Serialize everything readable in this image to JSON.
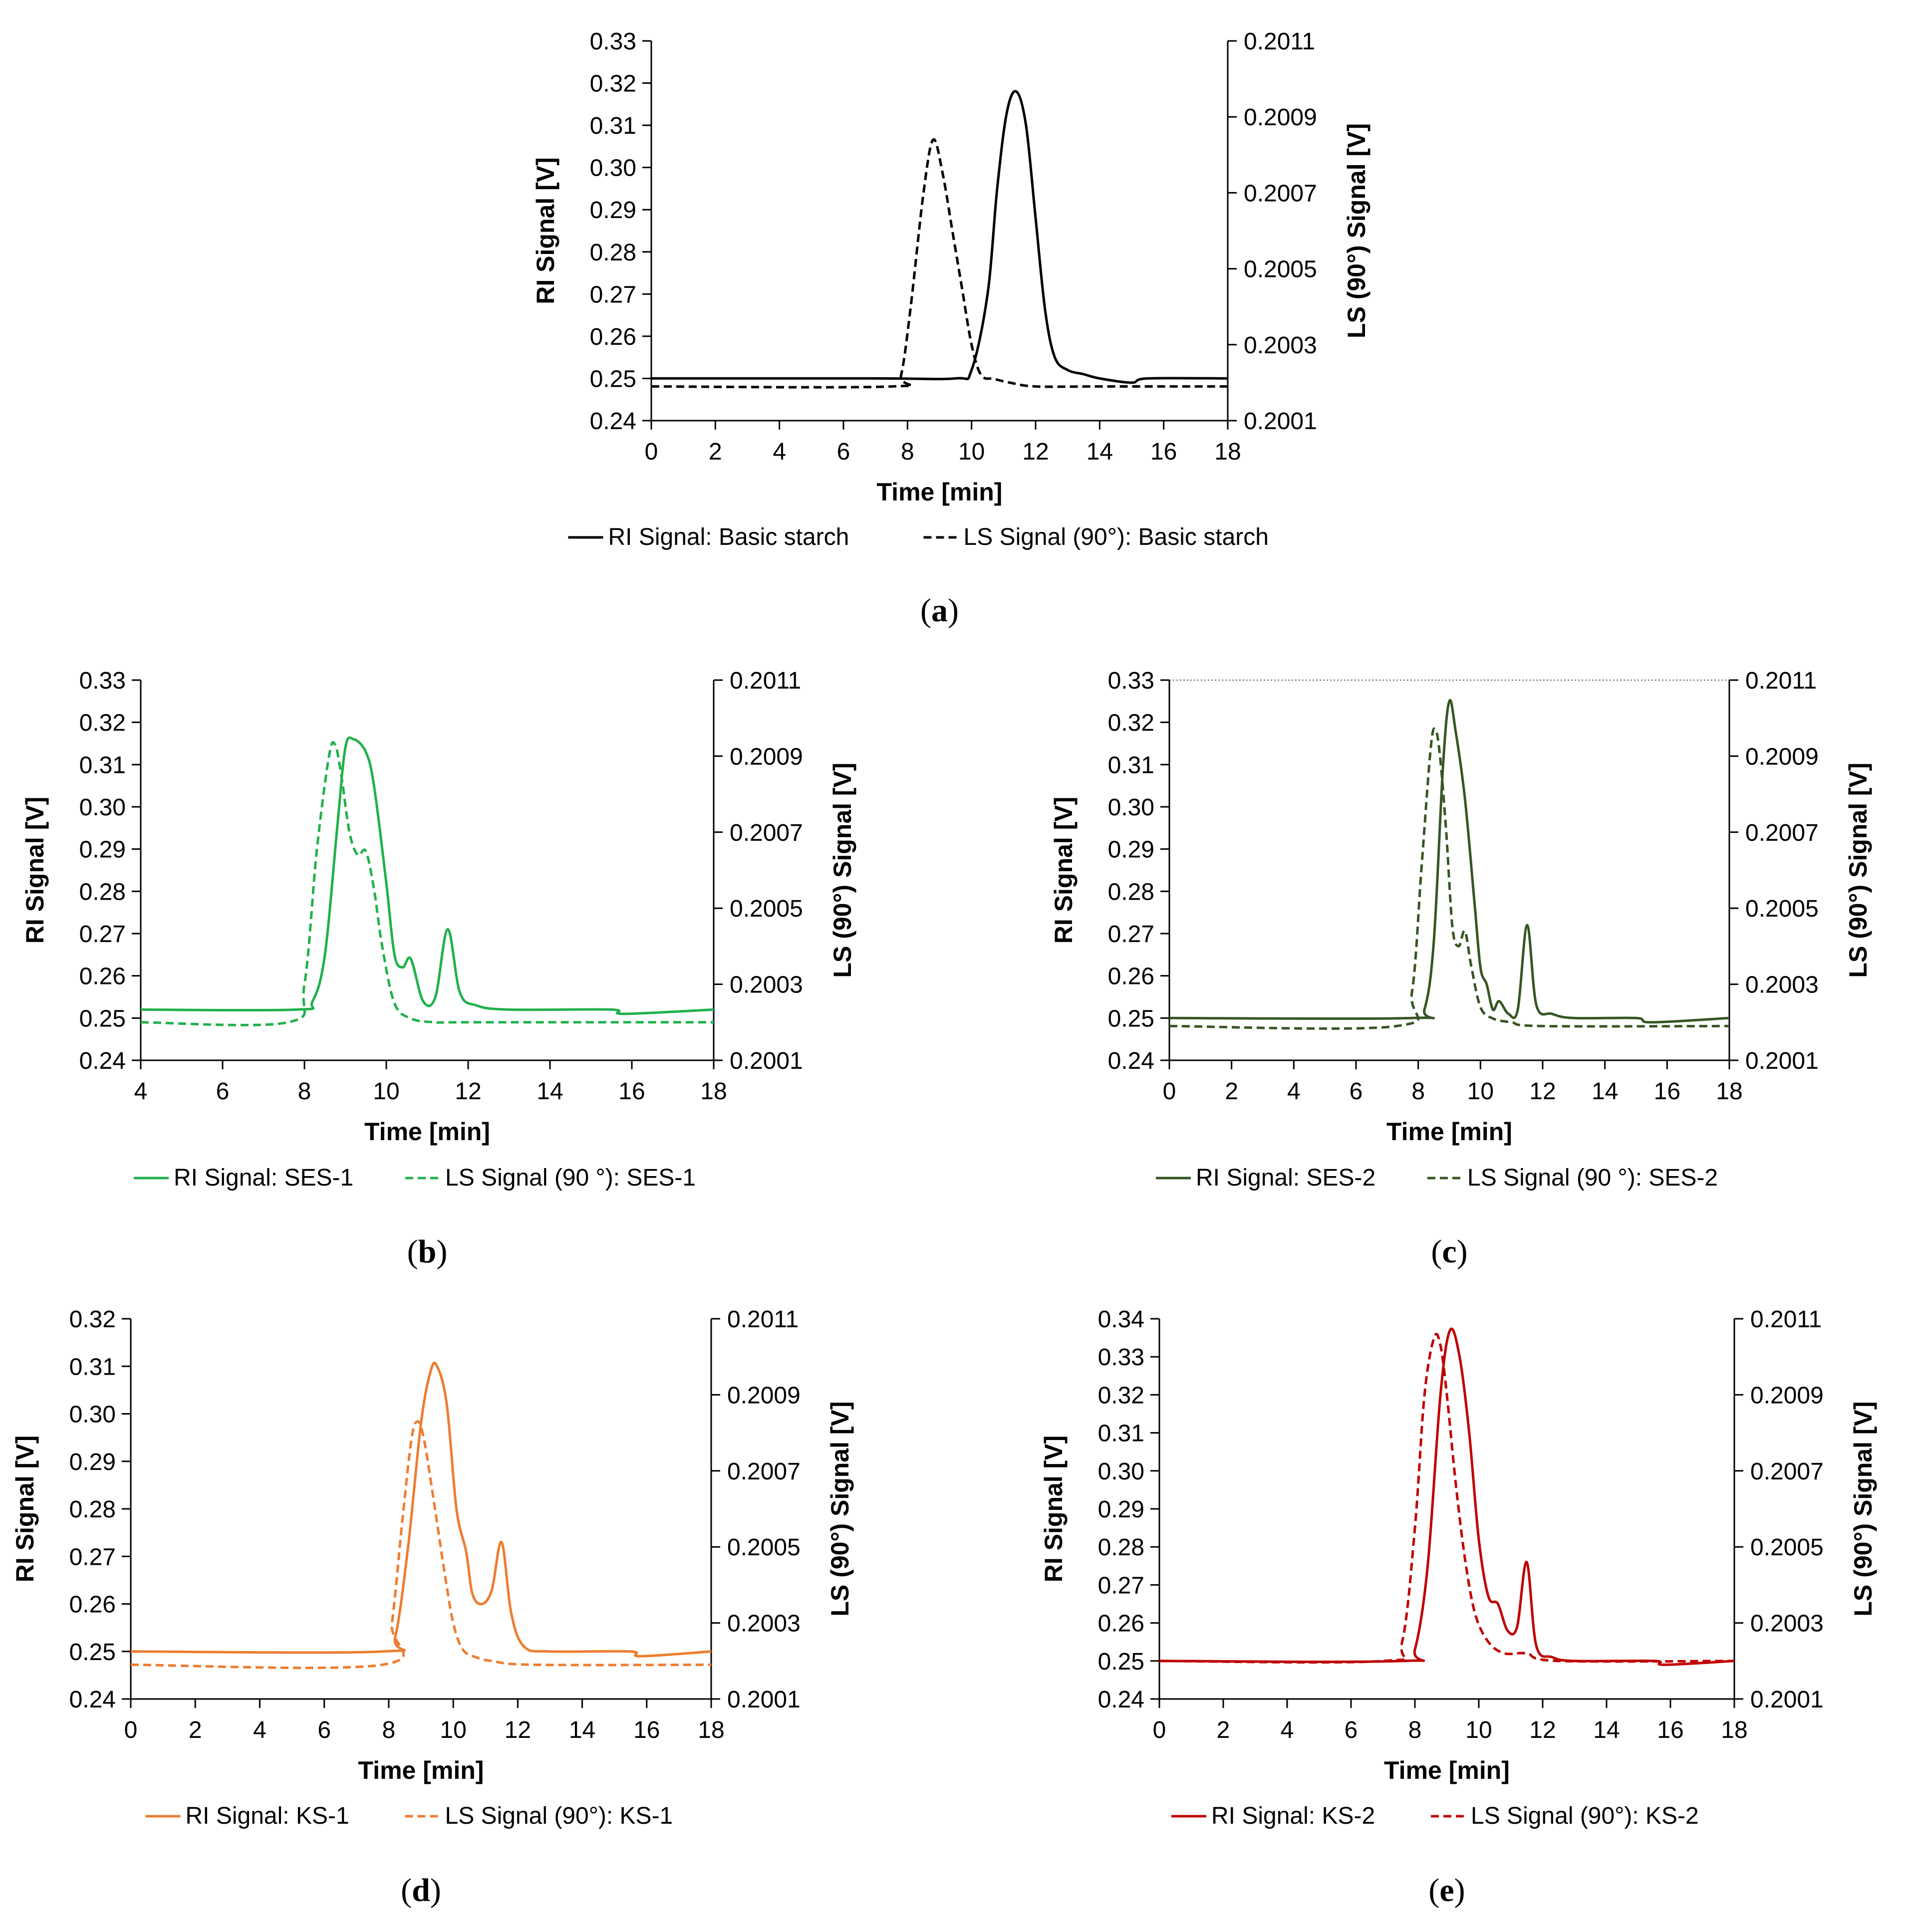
{
  "chart_data": [
    {
      "type": "line",
      "panel": "a",
      "caption": "a",
      "xlabel": "Time [min]",
      "ylabel": "RI Signal [V]",
      "y2label": "LS (90°) Signal [V]",
      "xlim": [
        0,
        18
      ],
      "ylim": [
        0.24,
        0.33
      ],
      "y2lim": [
        0.2001,
        0.2011
      ],
      "xticks": [
        "0",
        "2",
        "4",
        "6",
        "8",
        "10",
        "12",
        "14",
        "16",
        "18"
      ],
      "yticks": [
        "0.24",
        "0.25",
        "0.26",
        "0.27",
        "0.28",
        "0.29",
        "0.30",
        "0.31",
        "0.32",
        "0.33"
      ],
      "y2ticks": [
        "0.2001",
        "0.2003",
        "0.2005",
        "0.2007",
        "0.2009",
        "0.2011"
      ],
      "top_gridline": false,
      "series": [
        {
          "name": "RI Signal: Basic starch",
          "axis": "left",
          "style": "solid",
          "color": "#000000",
          "x": [
            0,
            7,
            9.5,
            10,
            10.5,
            10.8,
            11.1,
            11.4,
            11.7,
            12,
            12.3,
            12.6,
            13,
            13.5,
            14,
            15,
            15.5,
            18
          ],
          "y": [
            0.25,
            0.25,
            0.25,
            0.252,
            0.27,
            0.295,
            0.313,
            0.318,
            0.31,
            0.288,
            0.266,
            0.255,
            0.252,
            0.251,
            0.25,
            0.249,
            0.25,
            0.25
          ]
        },
        {
          "name": "LS Signal (90°): Basic starch",
          "axis": "right",
          "style": "dashed",
          "color": "#000000",
          "x": [
            0,
            7.5,
            7.8,
            8.1,
            8.5,
            8.8,
            9.1,
            9.4,
            9.7,
            10,
            10.3,
            10.7,
            11.2,
            12,
            14,
            18
          ],
          "y": [
            0.20019,
            0.20019,
            0.20022,
            0.2004,
            0.2007,
            0.20084,
            0.20075,
            0.2006,
            0.20045,
            0.2003,
            0.20022,
            0.20021,
            0.2002,
            0.20019,
            0.20019,
            0.20019
          ]
        }
      ]
    },
    {
      "type": "line",
      "panel": "b",
      "caption": "b",
      "xlabel": "Time [min]",
      "ylabel": "RI Signal [V]",
      "y2label": "LS (90°) Signal [V]",
      "xlim": [
        4,
        18
      ],
      "ylim": [
        0.24,
        0.33
      ],
      "y2lim": [
        0.2001,
        0.2011
      ],
      "xticks": [
        "4",
        "6",
        "8",
        "10",
        "12",
        "14",
        "16",
        "18"
      ],
      "yticks": [
        "0.24",
        "0.25",
        "0.26",
        "0.27",
        "0.28",
        "0.29",
        "0.30",
        "0.31",
        "0.32",
        "0.33"
      ],
      "y2ticks": [
        "0.2001",
        "0.2003",
        "0.2005",
        "0.2007",
        "0.2009",
        "0.2011"
      ],
      "top_gridline": false,
      "series": [
        {
          "name": "RI Signal: SES-1",
          "axis": "left",
          "style": "solid",
          "color": "#22b14c",
          "x": [
            4,
            7.8,
            8.2,
            8.5,
            8.8,
            9.0,
            9.2,
            9.5,
            9.7,
            10.0,
            10.2,
            10.4,
            10.6,
            10.9,
            11.2,
            11.5,
            11.8,
            12.2,
            13,
            15.5,
            15.8,
            18
          ],
          "y": [
            0.252,
            0.252,
            0.254,
            0.265,
            0.295,
            0.314,
            0.316,
            0.313,
            0.305,
            0.282,
            0.265,
            0.262,
            0.264,
            0.254,
            0.255,
            0.271,
            0.256,
            0.253,
            0.252,
            0.252,
            0.251,
            0.252
          ]
        },
        {
          "name": "LS Signal (90 °): SES-1",
          "axis": "right",
          "style": "dashed",
          "color": "#22b14c",
          "x": [
            4,
            7.6,
            8.0,
            8.3,
            8.6,
            8.75,
            8.9,
            9.1,
            9.3,
            9.5,
            9.7,
            9.9,
            10.2,
            10.6,
            11.2,
            12,
            18
          ],
          "y": [
            0.2002,
            0.2002,
            0.2003,
            0.20065,
            0.2009,
            0.20093,
            0.20085,
            0.2007,
            0.20064,
            0.20065,
            0.20055,
            0.2004,
            0.20025,
            0.20021,
            0.2002,
            0.2002,
            0.2002
          ]
        }
      ]
    },
    {
      "type": "line",
      "panel": "c",
      "caption": "c",
      "xlabel": "Time [min]",
      "ylabel": "RI Signal [V]",
      "y2label": "LS (90°) Signal [V]",
      "xlim": [
        0,
        18
      ],
      "ylim": [
        0.24,
        0.33
      ],
      "y2lim": [
        0.2001,
        0.2011
      ],
      "xticks": [
        "0",
        "2",
        "4",
        "6",
        "8",
        "10",
        "12",
        "14",
        "16",
        "18"
      ],
      "yticks": [
        "0.24",
        "0.25",
        "0.26",
        "0.27",
        "0.28",
        "0.29",
        "0.30",
        "0.31",
        "0.32",
        "0.33"
      ],
      "y2ticks": [
        "0.2001",
        "0.2003",
        "0.2005",
        "0.2007",
        "0.2009",
        "0.2011"
      ],
      "top_gridline": true,
      "series": [
        {
          "name": "RI Signal: SES-2",
          "axis": "left",
          "style": "solid",
          "color": "#375623",
          "x": [
            0,
            7.8,
            8.2,
            8.5,
            8.8,
            9.0,
            9.2,
            9.5,
            9.8,
            10.0,
            10.2,
            10.4,
            10.6,
            10.9,
            11.2,
            11.5,
            11.8,
            12.3,
            13,
            15,
            15.5,
            18
          ],
          "y": [
            0.25,
            0.25,
            0.252,
            0.268,
            0.31,
            0.325,
            0.318,
            0.302,
            0.278,
            0.262,
            0.258,
            0.252,
            0.254,
            0.251,
            0.252,
            0.272,
            0.253,
            0.251,
            0.25,
            0.25,
            0.249,
            0.25
          ]
        },
        {
          "name": "LS Signal (90 °): SES-2",
          "axis": "right",
          "style": "dashed",
          "color": "#375623",
          "x": [
            0,
            7.3,
            7.8,
            8.1,
            8.4,
            8.55,
            8.7,
            8.9,
            9.1,
            9.3,
            9.5,
            9.7,
            10.0,
            10.4,
            11.0,
            12,
            18
          ],
          "y": [
            0.20019,
            0.20019,
            0.20028,
            0.2006,
            0.20092,
            0.20097,
            0.2009,
            0.2007,
            0.20045,
            0.2004,
            0.20044,
            0.20035,
            0.20024,
            0.20021,
            0.2002,
            0.20019,
            0.20019
          ]
        }
      ]
    },
    {
      "type": "line",
      "panel": "d",
      "caption": "d",
      "xlabel": "Time [min]",
      "ylabel": "RI Signal [V]",
      "y2label": "LS (90°) Signal [V]",
      "xlim": [
        0,
        18
      ],
      "ylim": [
        0.24,
        0.32
      ],
      "y2lim": [
        0.2001,
        0.2011
      ],
      "xticks": [
        "0",
        "2",
        "4",
        "6",
        "8",
        "10",
        "12",
        "14",
        "16",
        "18"
      ],
      "yticks": [
        "0.24",
        "0.25",
        "0.26",
        "0.27",
        "0.28",
        "0.29",
        "0.30",
        "0.31",
        "0.32"
      ],
      "y2ticks": [
        "0.2001",
        "0.2003",
        "0.2005",
        "0.2007",
        "0.2009",
        "0.2011"
      ],
      "top_gridline": false,
      "series": [
        {
          "name": "RI Signal: KS-1",
          "axis": "left",
          "style": "solid",
          "color": "#ed7d31",
          "x": [
            0,
            7.8,
            8.2,
            8.6,
            9.0,
            9.3,
            9.5,
            9.8,
            10.1,
            10.4,
            10.6,
            10.9,
            11.2,
            11.5,
            11.8,
            12.2,
            13,
            15.5,
            15.8,
            18
          ],
          "y": [
            0.25,
            0.25,
            0.253,
            0.272,
            0.298,
            0.309,
            0.31,
            0.302,
            0.28,
            0.271,
            0.262,
            0.26,
            0.263,
            0.273,
            0.258,
            0.251,
            0.25,
            0.25,
            0.249,
            0.25
          ]
        },
        {
          "name": "LS Signal (90°): KS-1",
          "axis": "right",
          "style": "dashed",
          "color": "#ed7d31",
          "x": [
            0,
            7.8,
            8.1,
            8.4,
            8.7,
            8.9,
            9.1,
            9.4,
            9.7,
            10.0,
            10.3,
            10.7,
            11.2,
            12.5,
            18
          ],
          "y": [
            0.20019,
            0.20019,
            0.2003,
            0.20055,
            0.20078,
            0.20083,
            0.20078,
            0.20062,
            0.20045,
            0.2003,
            0.20023,
            0.20021,
            0.2002,
            0.20019,
            0.20019
          ]
        }
      ]
    },
    {
      "type": "line",
      "panel": "e",
      "caption": "e",
      "xlabel": "Time [min]",
      "ylabel": "RI Signal [V]",
      "y2label": "LS (90°) Signal [V]",
      "xlim": [
        0,
        18
      ],
      "ylim": [
        0.24,
        0.34
      ],
      "y2lim": [
        0.2001,
        0.2011
      ],
      "xticks": [
        "0",
        "2",
        "4",
        "6",
        "8",
        "10",
        "12",
        "14",
        "16",
        "18"
      ],
      "yticks": [
        "0.24",
        "0.25",
        "0.26",
        "0.27",
        "0.28",
        "0.29",
        "0.30",
        "0.31",
        "0.32",
        "0.33",
        "0.34"
      ],
      "y2ticks": [
        "0.2001",
        "0.2003",
        "0.2005",
        "0.2007",
        "0.2009",
        "0.2011"
      ],
      "top_gridline": false,
      "series": [
        {
          "name": "RI Signal: KS-2",
          "axis": "left",
          "style": "solid",
          "color": "#c00000",
          "x": [
            0,
            7.6,
            8.0,
            8.4,
            8.8,
            9.1,
            9.4,
            9.7,
            10.0,
            10.3,
            10.6,
            10.9,
            11.2,
            11.5,
            11.8,
            12.3,
            13,
            15.5,
            15.8,
            18
          ],
          "y": [
            0.25,
            0.25,
            0.253,
            0.275,
            0.32,
            0.337,
            0.33,
            0.31,
            0.282,
            0.267,
            0.265,
            0.258,
            0.259,
            0.276,
            0.254,
            0.251,
            0.25,
            0.25,
            0.249,
            0.25
          ]
        },
        {
          "name": "LS Signal (90°): KS-2",
          "axis": "right",
          "style": "dashed",
          "color": "#c00000",
          "x": [
            0,
            7.0,
            7.6,
            8.0,
            8.3,
            8.6,
            8.8,
            9.0,
            9.3,
            9.6,
            9.9,
            10.3,
            10.8,
            11.5,
            12.5,
            18
          ],
          "y": [
            0.2002,
            0.2002,
            0.20025,
            0.20055,
            0.2009,
            0.20105,
            0.20103,
            0.2009,
            0.20065,
            0.20045,
            0.20032,
            0.20025,
            0.20022,
            0.20022,
            0.2002,
            0.2002
          ]
        }
      ]
    }
  ]
}
